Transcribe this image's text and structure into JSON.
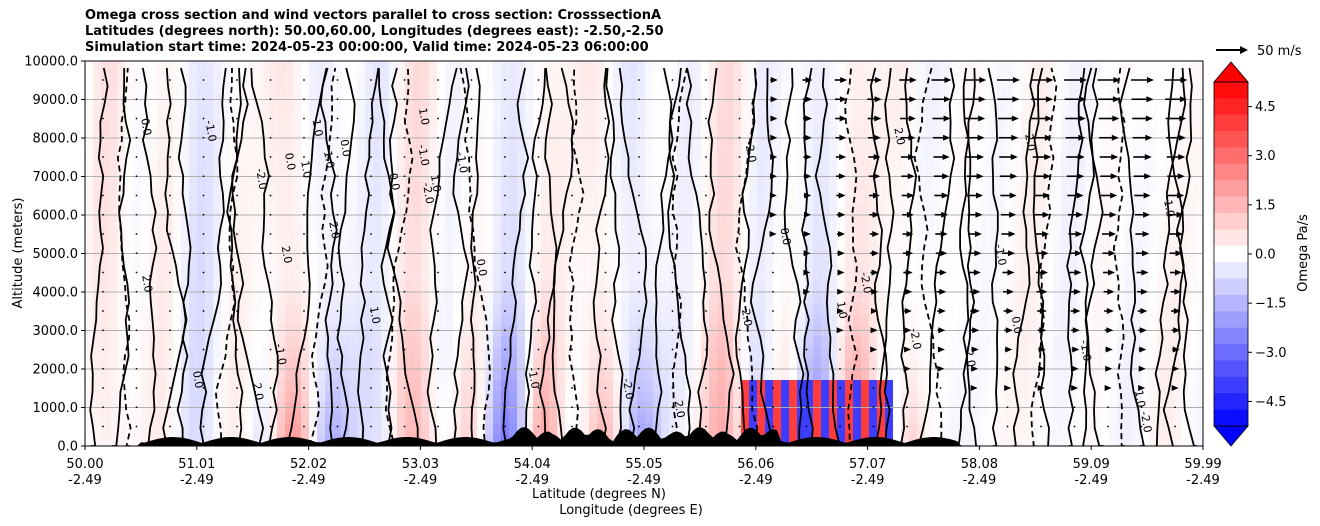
{
  "chart_data": {
    "type": "heatmap",
    "title_lines": [
      "Omega cross section and wind vectors parallel to cross section: CrosssectionA",
      "Latitudes (degrees north): 50.00,60.00, Longitudes (degrees east): -2.50,-2.50",
      "Simulation start time: 2024-05-23 00:00:00, Valid time: 2024-05-23 06:00:00"
    ],
    "ylabel": "Altitude (meters)",
    "xlabel_lines": [
      "Latitude (degrees N)",
      "Longitude (degrees E)"
    ],
    "ylim": [
      0,
      10000
    ],
    "y_ticks": [
      "0.0",
      "1000.0",
      "2000.0",
      "3000.0",
      "4000.0",
      "5000.0",
      "6000.0",
      "7000.0",
      "8000.0",
      "9000.0",
      "10000.0"
    ],
    "x_ticks": [
      {
        "lat": "50.00",
        "lon": "-2.49"
      },
      {
        "lat": "51.01",
        "lon": "-2.49"
      },
      {
        "lat": "52.02",
        "lon": "-2.49"
      },
      {
        "lat": "53.03",
        "lon": "-2.49"
      },
      {
        "lat": "54.04",
        "lon": "-2.49"
      },
      {
        "lat": "55.05",
        "lon": "-2.49"
      },
      {
        "lat": "56.06",
        "lon": "-2.49"
      },
      {
        "lat": "57.07",
        "lon": "-2.49"
      },
      {
        "lat": "58.08",
        "lon": "-2.49"
      },
      {
        "lat": "59.09",
        "lon": "-2.49"
      },
      {
        "lat": "59.99",
        "lon": "-2.49"
      }
    ],
    "grid": true,
    "colorbar": {
      "label": "Omega Pa/s",
      "range": [
        -5.25,
        5.25
      ],
      "ticks": [
        "4.5",
        "3.0",
        "1.5",
        "0.0",
        "−1.5",
        "−3.0",
        "−4.5"
      ],
      "tick_values": [
        4.5,
        3.0,
        1.5,
        0.0,
        -1.5,
        -3.0,
        -4.5
      ],
      "colors_negative": "#0000ff",
      "colors_positive": "#ff0000",
      "extend": "both"
    },
    "vector_key": {
      "label": "50 m/s"
    },
    "contour_levels_labeled": [
      "0.0",
      "1.0",
      "-1.0",
      "2.0",
      "-2.0"
    ]
  }
}
